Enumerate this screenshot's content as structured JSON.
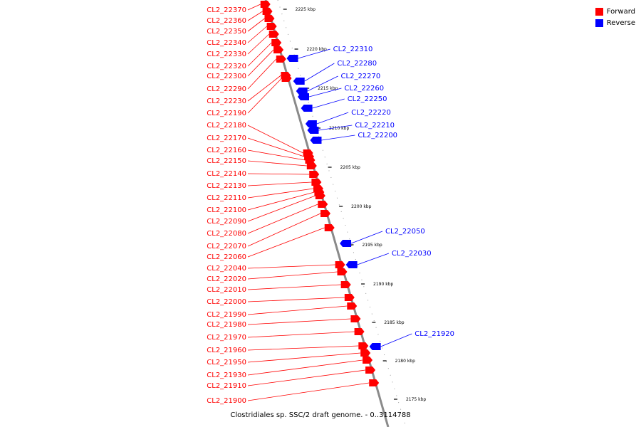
{
  "caption": "Clostridiales sp. SSC/2 draft genome. - 0..3114788",
  "colors": {
    "forward": "#ff0000",
    "reverse": "#0000ff",
    "axis": "#8a8a8a"
  },
  "legend": [
    {
      "label": "Forward",
      "color": "#ff0000"
    },
    {
      "label": "Reverse",
      "color": "#0000ff"
    }
  ],
  "ticks": [
    "2225 kbp",
    "2220 kbp",
    "2215 kbp",
    "2210 kbp",
    "2205 kbp",
    "2200 kbp",
    "2195 kbp",
    "2190 kbp",
    "2185 kbp",
    "2180 kbp",
    "2175 kbp"
  ],
  "forward_genes": [
    "CL2_22370",
    "CL2_22360",
    "CL2_22350",
    "CL2_22340",
    "CL2_22330",
    "CL2_22320",
    "CL2_22300",
    "CL2_22290",
    "CL2_22230",
    "CL2_22190",
    "CL2_22180",
    "CL2_22170",
    "CL2_22160",
    "CL2_22150",
    "CL2_22140",
    "CL2_22130",
    "CL2_22110",
    "CL2_22100",
    "CL2_22090",
    "CL2_22080",
    "CL2_22070",
    "CL2_22060",
    "CL2_22040",
    "CL2_22020",
    "CL2_22010",
    "CL2_22000",
    "CL2_21990",
    "CL2_21980",
    "CL2_21970",
    "CL2_21960",
    "CL2_21950",
    "CL2_21930",
    "CL2_21910",
    "CL2_21900"
  ],
  "reverse_genes": [
    "CL2_22310",
    "CL2_22280",
    "CL2_22270",
    "CL2_22260",
    "CL2_22250",
    "CL2_22220",
    "CL2_22210",
    "CL2_22200",
    "CL2_22050",
    "CL2_22030",
    "CL2_21920"
  ]
}
